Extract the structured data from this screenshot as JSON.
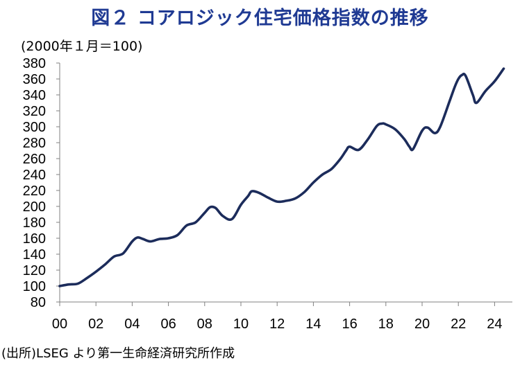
{
  "title": "図２ コアロジック住宅価格指数の推移",
  "unit_label": "(2000年１月＝100)",
  "source_note": "(出所)LSEG より第一生命経済研究所作成",
  "colors": {
    "title": "#1f3a93",
    "line": "#1c2c5b"
  },
  "chart_data": {
    "type": "line",
    "title": "図２ コアロジック住宅価格指数の推移",
    "ylabel": "(2000年１月＝100)",
    "xlabel": "",
    "x_ticks": [
      "00",
      "02",
      "04",
      "06",
      "08",
      "10",
      "12",
      "14",
      "16",
      "18",
      "20",
      "22",
      "24"
    ],
    "y_ticks": [
      80,
      100,
      120,
      140,
      160,
      180,
      200,
      220,
      240,
      260,
      280,
      300,
      320,
      340,
      360,
      380
    ],
    "ylim": [
      80,
      380
    ],
    "xlim": [
      2000.0,
      2024.6
    ],
    "grid": false,
    "legend": "none",
    "series": [
      {
        "x": [
          2000.0,
          2000.5,
          2001.0,
          2001.5,
          2002.0,
          2002.5,
          2003.0,
          2003.5,
          2004.0,
          2004.3,
          2004.6,
          2005.0,
          2005.5,
          2006.0,
          2006.5,
          2007.0,
          2007.5,
          2008.0,
          2008.3,
          2008.6,
          2009.0,
          2009.5,
          2010.0,
          2010.4,
          2010.6,
          2011.0,
          2011.5,
          2012.0,
          2012.5,
          2013.0,
          2013.5,
          2014.0,
          2014.5,
          2015.0,
          2015.5,
          2015.8,
          2016.0,
          2016.5,
          2017.0,
          2017.5,
          2017.8,
          2018.0,
          2018.5,
          2019.0,
          2019.3,
          2019.5,
          2020.0,
          2020.3,
          2020.7,
          2021.0,
          2021.5,
          2021.8,
          2022.0,
          2022.2,
          2022.4,
          2022.8,
          2023.0,
          2023.5,
          2024.0,
          2024.5
        ],
        "y": [
          100,
          102,
          103,
          110,
          118,
          127,
          137,
          141,
          156,
          161,
          159,
          156,
          159,
          160,
          164,
          176,
          180,
          192,
          199,
          198,
          188,
          184,
          202,
          213,
          219,
          217,
          211,
          206,
          207,
          210,
          218,
          230,
          240,
          247,
          260,
          270,
          275,
          271,
          284,
          301,
          304,
          303,
          297,
          285,
          275,
          272,
          295,
          299,
          292,
          300,
          331,
          350,
          360,
          365,
          364,
          340,
          330,
          345,
          357,
          373
        ]
      }
    ]
  }
}
